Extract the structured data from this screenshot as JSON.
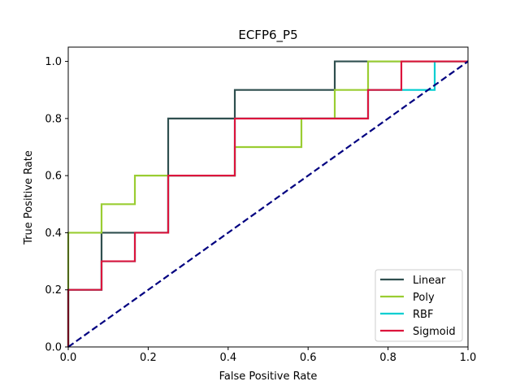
{
  "chart_data": {
    "type": "line",
    "title": "ECFP6_P5",
    "xlabel": "False Positive Rate",
    "ylabel": "True Positive Rate",
    "xlim": [
      0,
      1
    ],
    "ylim": [
      0,
      1.05
    ],
    "xticks": [
      "0.0",
      "0.2",
      "0.4",
      "0.6",
      "0.8",
      "1.0"
    ],
    "yticks": [
      "0.0",
      "0.2",
      "0.4",
      "0.6",
      "0.8",
      "1.0"
    ],
    "grid": false,
    "legend_position": "lower right",
    "series": [
      {
        "name": "Linear",
        "color": "#2f4f4f",
        "x": [
          0,
          0,
          0.0833,
          0.0833,
          0.1667,
          0.1667,
          0.25,
          0.25,
          0.4167,
          0.4167,
          0.6667,
          0.6667,
          0.75,
          0.75,
          1
        ],
        "y": [
          0,
          0.2,
          0.2,
          0.4,
          0.4,
          0.4,
          0.4,
          0.8,
          0.8,
          0.9,
          0.9,
          1.0,
          1.0,
          1.0,
          1.0
        ]
      },
      {
        "name": "Poly",
        "color": "#9acd32",
        "x": [
          0,
          0,
          0.0833,
          0.0833,
          0.1667,
          0.1667,
          0.25,
          0.25,
          0.4167,
          0.4167,
          0.5833,
          0.5833,
          0.6667,
          0.6667,
          0.75,
          0.75,
          1
        ],
        "y": [
          0,
          0.4,
          0.4,
          0.5,
          0.5,
          0.6,
          0.6,
          0.6,
          0.6,
          0.7,
          0.7,
          0.8,
          0.8,
          0.9,
          0.9,
          1.0,
          1.0
        ]
      },
      {
        "name": "RBF",
        "color": "#00ced1",
        "x": [
          0,
          0,
          0.0833,
          0.0833,
          0.1667,
          0.1667,
          0.25,
          0.25,
          0.4167,
          0.4167,
          0.75,
          0.75,
          0.8333,
          0.8333,
          0.9167,
          0.9167,
          1
        ],
        "y": [
          0,
          0.2,
          0.2,
          0.3,
          0.3,
          0.4,
          0.4,
          0.6,
          0.6,
          0.8,
          0.8,
          0.9,
          0.9,
          0.9,
          0.9,
          1.0,
          1.0
        ]
      },
      {
        "name": "Sigmoid",
        "color": "#dc143c",
        "x": [
          0,
          0,
          0.0833,
          0.0833,
          0.1667,
          0.1667,
          0.25,
          0.25,
          0.4167,
          0.4167,
          0.75,
          0.75,
          0.8333,
          0.8333,
          1
        ],
        "y": [
          0,
          0.2,
          0.2,
          0.3,
          0.3,
          0.4,
          0.4,
          0.6,
          0.6,
          0.8,
          0.8,
          0.9,
          0.9,
          1.0,
          1.0
        ]
      }
    ],
    "reference_line": {
      "color": "#000080",
      "style": "dashed",
      "x": [
        0,
        1
      ],
      "y": [
        0,
        1
      ]
    }
  }
}
